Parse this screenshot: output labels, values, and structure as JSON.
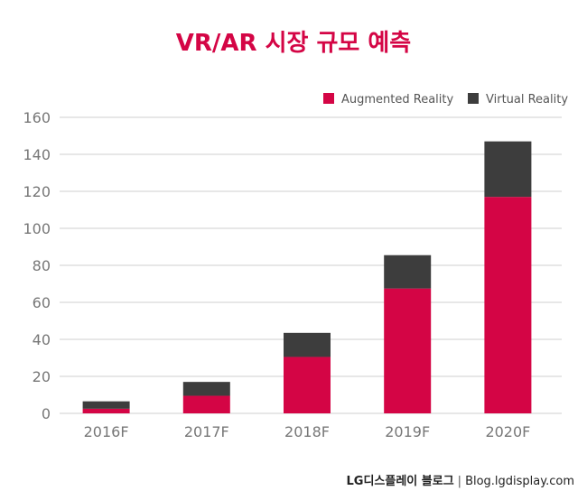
{
  "colors": {
    "ar": "#d40545",
    "vr": "#3d3d3d",
    "title": "#d40545"
  },
  "footer": {
    "brand": "LG디스플레이 블로그",
    "separator": "|",
    "site": "Blog.lgdisplay.com"
  },
  "chart_data": {
    "type": "bar",
    "stacked": true,
    "title": "VR/AR 시장 규모 예측",
    "categories": [
      "2016F",
      "2017F",
      "2018F",
      "2019F",
      "2020F"
    ],
    "series": [
      {
        "name": "Augmented Reality",
        "values": [
          2.5,
          9.5,
          30.5,
          67.5,
          117
        ]
      },
      {
        "name": "Virtual Reality",
        "values": [
          4,
          7.5,
          13,
          18,
          30
        ]
      }
    ],
    "ylim": [
      0,
      160
    ],
    "yticks": [
      0,
      20,
      40,
      60,
      80,
      100,
      120,
      140,
      160
    ],
    "grid": true,
    "legend": "top-right"
  }
}
